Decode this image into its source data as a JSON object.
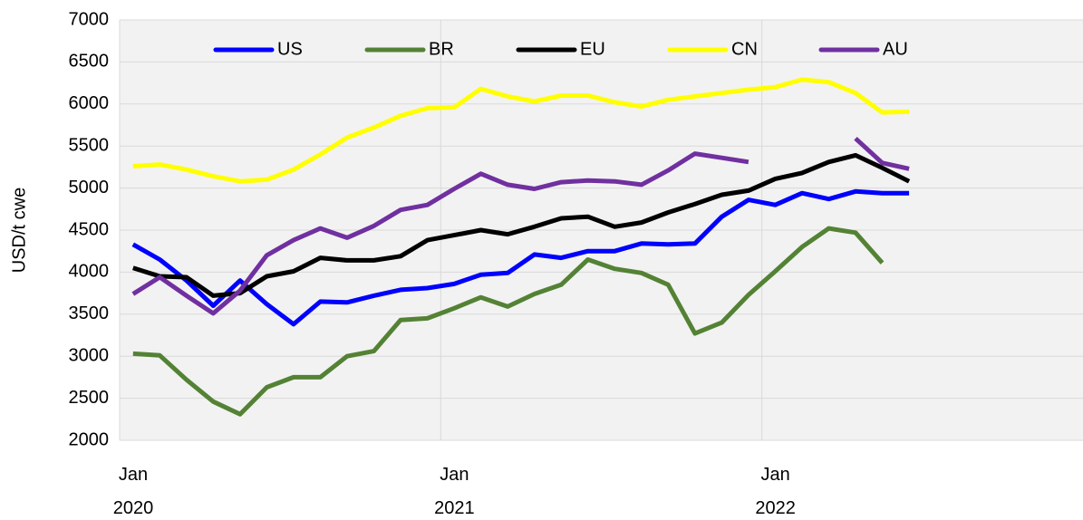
{
  "chart_data": {
    "type": "line",
    "y_label": "USD/t cwe",
    "x": [
      "2020-01",
      "2020-02",
      "2020-03",
      "2020-04",
      "2020-05",
      "2020-06",
      "2020-07",
      "2020-08",
      "2020-09",
      "2020-10",
      "2020-11",
      "2020-12",
      "2021-01",
      "2021-02",
      "2021-03",
      "2021-04",
      "2021-05",
      "2021-06",
      "2021-07",
      "2021-08",
      "2021-09",
      "2021-10",
      "2021-11",
      "2021-12",
      "2022-01",
      "2022-02",
      "2022-03",
      "2022-04",
      "2022-05",
      "2022-06"
    ],
    "series": [
      {
        "name": "US",
        "color": "#0000ff",
        "values": [
          4330,
          4150,
          3900,
          3600,
          3900,
          3620,
          3380,
          3650,
          3640,
          3720,
          3790,
          3810,
          3860,
          3970,
          3990,
          4210,
          4170,
          4250,
          4250,
          4340,
          4330,
          4340,
          4660,
          4860,
          4800,
          4940,
          4870,
          4960,
          4940,
          4940
        ]
      },
      {
        "name": "BR",
        "color": "#548235",
        "values": [
          3030,
          3010,
          2720,
          2460,
          2310,
          2630,
          2750,
          2750,
          3000,
          3060,
          3430,
          3450,
          3570,
          3700,
          3590,
          3740,
          3850,
          4150,
          4040,
          3990,
          3850,
          3270,
          3400,
          3730,
          4010,
          4300,
          4520,
          4470,
          4110,
          null
        ]
      },
      {
        "name": "EU",
        "color": "#000000",
        "values": [
          4050,
          3950,
          3940,
          3720,
          3750,
          3950,
          4010,
          4170,
          4140,
          4140,
          4190,
          4380,
          4440,
          4500,
          4450,
          4540,
          4640,
          4660,
          4540,
          4590,
          4710,
          4810,
          4920,
          4970,
          5110,
          5180,
          5310,
          5390,
          5240,
          5080
        ]
      },
      {
        "name": "CN",
        "color": "#ffff00",
        "values": [
          5260,
          5280,
          5220,
          5140,
          5080,
          5100,
          5220,
          5400,
          5600,
          5720,
          5860,
          5950,
          5960,
          6180,
          6090,
          6030,
          6100,
          6100,
          6020,
          5970,
          6050,
          6090,
          6130,
          6170,
          6200,
          6290,
          6260,
          6130,
          5900,
          5910
        ]
      },
      {
        "name": "AU",
        "color": "#7030a0",
        "values": [
          3740,
          3940,
          3720,
          3510,
          3780,
          4200,
          4380,
          4520,
          4410,
          4550,
          4740,
          4800,
          4990,
          5170,
          5040,
          4990,
          5070,
          5090,
          5080,
          5040,
          5210,
          5410,
          5360,
          5310,
          null,
          null,
          null,
          5590,
          5300,
          5230
        ]
      }
    ],
    "xlim": [
      "2020-01",
      "2023-01"
    ],
    "xticks": [
      {
        "value": "2020-01",
        "label": "Jan 2020"
      },
      {
        "value": "2021-01",
        "label": "Jan 2021"
      },
      {
        "value": "2022-01",
        "label": "Jan 2022"
      }
    ],
    "ylim": [
      2000,
      7000
    ],
    "yticks": [
      2000,
      2500,
      3000,
      3500,
      4000,
      4500,
      5000,
      5500,
      6000,
      6500,
      7000
    ],
    "grid": true,
    "legend": "top"
  }
}
